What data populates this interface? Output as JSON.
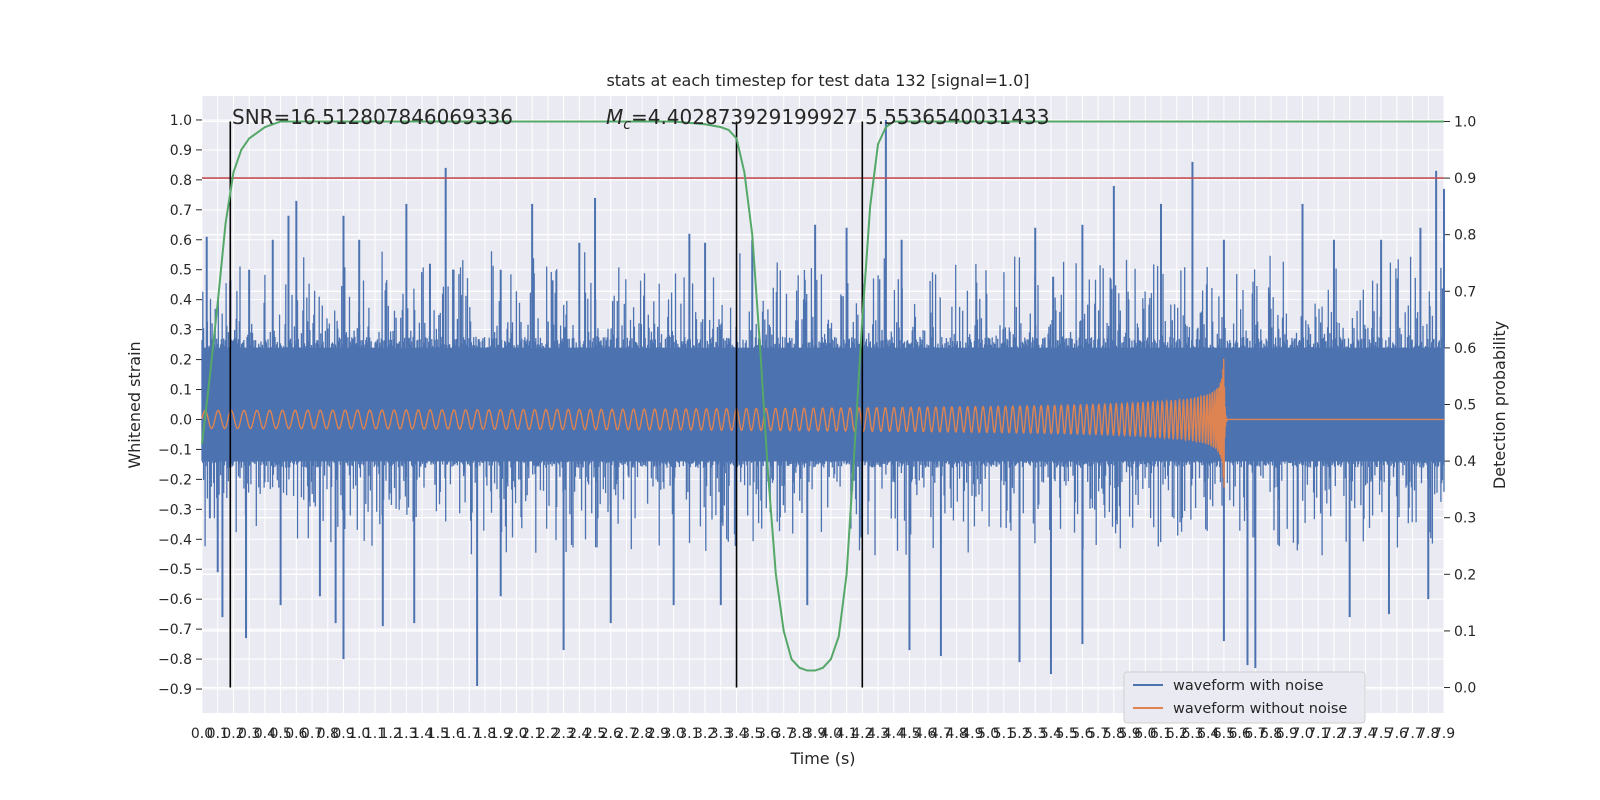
{
  "chart_data": {
    "type": "line",
    "title": "stats at each timestep for test data 132 [signal=1.0]",
    "xlabel": "Time (s)",
    "ylabel": "Whitened strain",
    "y2label": "Detection probability",
    "xlim": [
      0.0,
      7.9
    ],
    "ylim": [
      -0.98,
      1.08
    ],
    "y2lim": [
      -0.045,
      1.045
    ],
    "xticks": [
      "0.0",
      "0.1",
      "0.2",
      "0.3",
      "0.4",
      "0.5",
      "0.6",
      "0.7",
      "0.8",
      "0.9",
      "1.0",
      "1.1",
      "1.2",
      "1.3",
      "1.4",
      "1.5",
      "1.6",
      "1.7",
      "1.8",
      "1.9",
      "2.0",
      "2.1",
      "2.2",
      "2.3",
      "2.4",
      "2.5",
      "2.6",
      "2.7",
      "2.8",
      "2.9",
      "3.0",
      "3.1",
      "3.2",
      "3.3",
      "3.4",
      "3.5",
      "3.6",
      "3.7",
      "3.8",
      "3.9",
      "4.0",
      "4.1",
      "4.2",
      "4.3",
      "4.4",
      "4.5",
      "4.6",
      "4.7",
      "4.8",
      "4.9",
      "5.0",
      "5.1",
      "5.2",
      "5.3",
      "5.4",
      "5.5",
      "5.6",
      "5.7",
      "5.8",
      "5.9",
      "6.0",
      "6.1",
      "6.2",
      "6.3",
      "6.4",
      "6.5",
      "6.6",
      "6.7",
      "6.8",
      "6.9",
      "7.0",
      "7.1",
      "7.2",
      "7.3",
      "7.4",
      "7.5",
      "7.6",
      "7.7",
      "7.8",
      "7.9"
    ],
    "yticks": [
      "1.0",
      "0.9",
      "0.8",
      "0.7",
      "0.6",
      "0.5",
      "0.4",
      "0.3",
      "0.2",
      "0.1",
      "0.0",
      "−0.1",
      "−0.2",
      "−0.3",
      "−0.4",
      "−0.5",
      "−0.6",
      "−0.7",
      "−0.8",
      "−0.9"
    ],
    "y2ticks": [
      "1.0",
      "0.9",
      "0.8",
      "0.7",
      "0.6",
      "0.5",
      "0.4",
      "0.3",
      "0.2",
      "0.1",
      "0.0"
    ],
    "annotations": {
      "snr": "SNR=16.512807846069336",
      "mc_prefix": "M",
      "mc_sub": "c",
      "mc_value": "=4.402873929199927",
      "overlap": "5.5536540031433"
    },
    "vlines_x": [
      0.18,
      3.4,
      4.2
    ],
    "threshold_y2": 0.9,
    "series": [
      {
        "name": "waveform with noise",
        "color": "#4c72b0",
        "noise_envelope": {
          "baseline_high": 0.24,
          "baseline_low": -0.14,
          "peaks_high": [
            [
              0.03,
              0.61
            ],
            [
              0.3,
              0.5
            ],
            [
              0.45,
              0.6
            ],
            [
              0.55,
              0.68
            ],
            [
              0.6,
              0.73
            ],
            [
              0.9,
              0.68
            ],
            [
              1.0,
              0.6
            ],
            [
              1.3,
              0.72
            ],
            [
              1.45,
              0.52
            ],
            [
              1.55,
              0.84
            ],
            [
              1.6,
              0.5
            ],
            [
              1.9,
              0.5
            ],
            [
              2.1,
              0.72
            ],
            [
              2.4,
              0.59
            ],
            [
              2.5,
              0.74
            ],
            [
              3.1,
              0.62
            ],
            [
              3.2,
              0.59
            ],
            [
              3.5,
              0.6
            ],
            [
              3.9,
              0.65
            ],
            [
              4.1,
              0.64
            ],
            [
              4.35,
              1.0
            ],
            [
              4.45,
              0.6
            ],
            [
              5.3,
              0.64
            ],
            [
              5.6,
              0.65
            ],
            [
              5.8,
              0.78
            ],
            [
              6.1,
              0.72
            ],
            [
              6.3,
              0.86
            ],
            [
              6.5,
              0.6
            ],
            [
              7.0,
              0.72
            ],
            [
              7.2,
              0.6
            ],
            [
              7.5,
              0.6
            ],
            [
              7.75,
              0.64
            ],
            [
              7.85,
              0.83
            ],
            [
              7.9,
              0.77
            ]
          ],
          "peaks_low": [
            [
              0.05,
              -0.33
            ],
            [
              0.1,
              -0.51
            ],
            [
              0.13,
              -0.66
            ],
            [
              0.28,
              -0.73
            ],
            [
              0.5,
              -0.62
            ],
            [
              0.75,
              -0.59
            ],
            [
              0.85,
              -0.68
            ],
            [
              0.9,
              -0.8
            ],
            [
              1.15,
              -0.69
            ],
            [
              1.35,
              -0.68
            ],
            [
              1.75,
              -0.89
            ],
            [
              1.9,
              -0.59
            ],
            [
              2.3,
              -0.77
            ],
            [
              2.6,
              -0.68
            ],
            [
              3.0,
              -0.62
            ],
            [
              3.3,
              -0.62
            ],
            [
              3.85,
              -0.62
            ],
            [
              4.5,
              -0.77
            ],
            [
              4.7,
              -0.79
            ],
            [
              5.2,
              -0.81
            ],
            [
              5.4,
              -0.85
            ],
            [
              5.6,
              -0.75
            ],
            [
              6.5,
              -0.74
            ],
            [
              6.65,
              -0.82
            ],
            [
              6.7,
              -0.83
            ],
            [
              7.3,
              -0.66
            ],
            [
              7.55,
              -0.65
            ],
            [
              7.8,
              -0.6
            ]
          ]
        }
      },
      {
        "name": "waveform without noise",
        "color": "#dd8452",
        "chirp": {
          "amplitude_start": 0.03,
          "amplitude_at_merger": 0.33,
          "merger_time": 6.5,
          "ringdown_end": 6.52,
          "after_value": 0.0
        }
      },
      {
        "name": "detection probability",
        "color": "#55a868",
        "axis": "y2",
        "x": [
          0.0,
          0.05,
          0.1,
          0.15,
          0.2,
          0.25,
          0.3,
          0.4,
          0.5,
          0.7,
          1.0,
          1.5,
          2.0,
          2.5,
          3.0,
          3.2,
          3.3,
          3.35,
          3.4,
          3.45,
          3.5,
          3.55,
          3.6,
          3.65,
          3.7,
          3.75,
          3.8,
          3.85,
          3.9,
          3.95,
          4.0,
          4.05,
          4.1,
          4.15,
          4.2,
          4.25,
          4.3,
          4.35,
          4.4,
          4.5,
          5.0,
          6.0,
          7.0,
          7.9
        ],
        "y": [
          0.43,
          0.55,
          0.68,
          0.82,
          0.91,
          0.95,
          0.97,
          0.99,
          1.0,
          1.0,
          1.0,
          1.0,
          1.0,
          1.0,
          1.0,
          0.995,
          0.99,
          0.985,
          0.97,
          0.91,
          0.8,
          0.6,
          0.38,
          0.2,
          0.1,
          0.05,
          0.035,
          0.03,
          0.03,
          0.035,
          0.05,
          0.09,
          0.2,
          0.42,
          0.65,
          0.85,
          0.96,
          0.99,
          1.0,
          1.0,
          1.0,
          1.0,
          1.0,
          1.0
        ]
      }
    ],
    "legend": {
      "position": "lower-right",
      "entries": [
        "waveform with noise",
        "waveform without noise"
      ]
    },
    "grid": true,
    "background_color": "#eaeaf2"
  }
}
